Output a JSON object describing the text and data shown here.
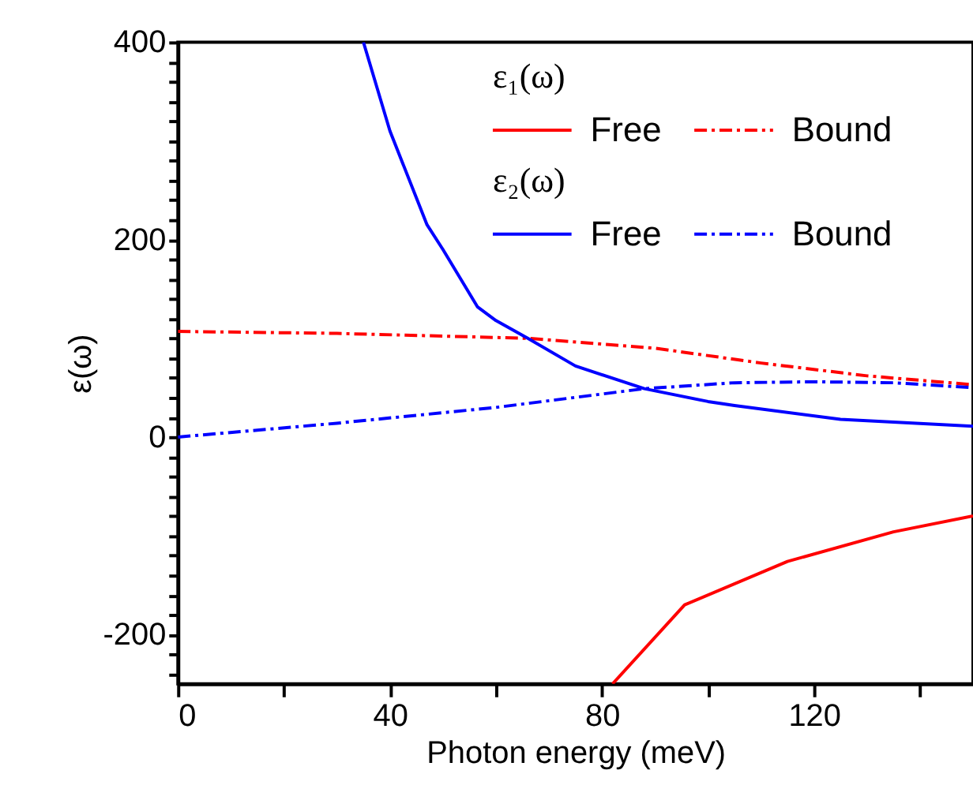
{
  "chart_data": {
    "type": "line",
    "xlabel": "Photon energy (meV)",
    "ylabel": "ε(ω)",
    "xlim": [
      0,
      150
    ],
    "xticks": [
      0,
      {
        "value": 20,
        "label": null
      },
      40,
      {
        "value": 60,
        "label": null
      },
      80,
      {
        "value": 100,
        "label": null
      },
      120,
      {
        "value": 140,
        "label": null
      }
    ],
    "ylim": [
      -250,
      400
    ],
    "yticks": [
      {
        "value": -240,
        "label": null
      },
      {
        "value": -220,
        "label": null
      },
      {
        "value": -200,
        "label": "-200"
      },
      {
        "value": -180,
        "label": null
      },
      {
        "value": -160,
        "label": null
      },
      {
        "value": -140,
        "label": null
      },
      {
        "value": -120,
        "label": null
      },
      {
        "value": -100,
        "label": null
      },
      {
        "value": -80,
        "label": null
      },
      {
        "value": -60,
        "label": null
      },
      {
        "value": -40,
        "label": null
      },
      {
        "value": -20,
        "label": null
      },
      0,
      {
        "value": 20,
        "label": null
      },
      {
        "value": 40,
        "label": null
      },
      {
        "value": 60,
        "label": null
      },
      {
        "value": 80,
        "label": null
      },
      {
        "value": 100,
        "label": null
      },
      {
        "value": 120,
        "label": null
      },
      {
        "value": 140,
        "label": null
      },
      {
        "value": 160,
        "label": null
      },
      {
        "value": 180,
        "label": null
      },
      200,
      {
        "value": 220,
        "label": null
      },
      {
        "value": 240,
        "label": null
      },
      {
        "value": 260,
        "label": null
      },
      {
        "value": 280,
        "label": null
      },
      {
        "value": 300,
        "label": null
      },
      {
        "value": 320,
        "label": null
      },
      {
        "value": 340,
        "label": null
      },
      {
        "value": 360,
        "label": null
      },
      {
        "value": 380,
        "label": null
      },
      400
    ],
    "annotations": [
      "ε₁(ω)",
      "ε₂(ω)"
    ],
    "legend": "top right",
    "grid": false,
    "series": [
      {
        "name": "Free",
        "color": "#ff0000",
        "line_style": "solid",
        "x": [
          82,
          95.6,
          115,
          135,
          150
        ],
        "values": [
          -250,
          -170,
          -126,
          -96,
          -80
        ]
      },
      {
        "name": "Bound",
        "color": "#ff0000",
        "line_style": "dashdot",
        "x": [
          0,
          30,
          66,
          90,
          110,
          130,
          150
        ],
        "values": [
          107,
          105,
          100,
          90,
          75,
          62,
          53
        ]
      },
      {
        "name": "Free",
        "color": "#0000ff",
        "line_style": "solid",
        "x": [
          35,
          40,
          47,
          50,
          56.5,
          60,
          66,
          75,
          88,
          100,
          105,
          125,
          150
        ],
        "values": [
          400,
          310,
          215,
          190,
          132,
          118,
          100,
          72,
          49,
          36,
          32,
          18,
          11
        ]
      },
      {
        "name": "Bound",
        "color": "#0000ff",
        "line_style": "dashdot",
        "x": [
          0,
          30,
          60,
          88,
          105,
          120,
          135,
          150
        ],
        "values": [
          0,
          14,
          30,
          49,
          55,
          56,
          55,
          50
        ]
      }
    ]
  }
}
